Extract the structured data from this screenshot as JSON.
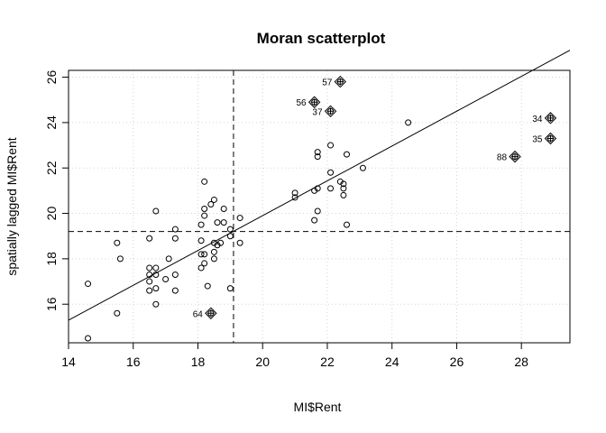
{
  "chart_data": {
    "type": "scatter",
    "title": "Moran scatterplot",
    "xlabel": "MI$Rent",
    "ylabel": "spatially lagged MI$Rent",
    "xlim": [
      14,
      29.5
    ],
    "ylim": [
      14.3,
      26.3
    ],
    "xticks": [
      14,
      16,
      18,
      20,
      22,
      24,
      26,
      28
    ],
    "yticks": [
      16,
      18,
      20,
      22,
      24,
      26
    ],
    "grid": true,
    "mean_x": 19.1,
    "mean_y": 19.2,
    "regression": {
      "intercept": 4.56,
      "slope": 0.767
    },
    "points": [
      {
        "x": 14.6,
        "y": 16.9
      },
      {
        "x": 14.6,
        "y": 14.5
      },
      {
        "x": 15.5,
        "y": 18.7
      },
      {
        "x": 15.6,
        "y": 18.0
      },
      {
        "x": 15.5,
        "y": 15.6
      },
      {
        "x": 16.5,
        "y": 18.9
      },
      {
        "x": 16.5,
        "y": 17.6
      },
      {
        "x": 16.5,
        "y": 17.3
      },
      {
        "x": 16.5,
        "y": 17.0
      },
      {
        "x": 16.5,
        "y": 16.6
      },
      {
        "x": 16.7,
        "y": 20.1
      },
      {
        "x": 16.7,
        "y": 17.6
      },
      {
        "x": 16.7,
        "y": 17.3
      },
      {
        "x": 16.7,
        "y": 16.7
      },
      {
        "x": 16.7,
        "y": 16.0
      },
      {
        "x": 17.0,
        "y": 17.1
      },
      {
        "x": 17.1,
        "y": 18.0
      },
      {
        "x": 17.3,
        "y": 19.3
      },
      {
        "x": 17.3,
        "y": 18.9
      },
      {
        "x": 17.3,
        "y": 17.3
      },
      {
        "x": 17.3,
        "y": 16.6
      },
      {
        "x": 18.1,
        "y": 19.5
      },
      {
        "x": 18.1,
        "y": 18.8
      },
      {
        "x": 18.1,
        "y": 18.2
      },
      {
        "x": 18.1,
        "y": 17.6
      },
      {
        "x": 18.2,
        "y": 21.4
      },
      {
        "x": 18.2,
        "y": 20.2
      },
      {
        "x": 18.2,
        "y": 19.9
      },
      {
        "x": 18.2,
        "y": 18.2
      },
      {
        "x": 18.2,
        "y": 17.8
      },
      {
        "x": 18.3,
        "y": 16.8
      },
      {
        "x": 18.4,
        "y": 20.4
      },
      {
        "x": 18.5,
        "y": 18.7
      },
      {
        "x": 18.5,
        "y": 18.3
      },
      {
        "x": 18.5,
        "y": 18.0
      },
      {
        "x": 18.5,
        "y": 20.6
      },
      {
        "x": 18.6,
        "y": 19.6
      },
      {
        "x": 18.6,
        "y": 18.6
      },
      {
        "x": 18.7,
        "y": 18.7
      },
      {
        "x": 18.8,
        "y": 20.2
      },
      {
        "x": 18.8,
        "y": 19.6
      },
      {
        "x": 19.0,
        "y": 19.3
      },
      {
        "x": 19.0,
        "y": 19.0
      },
      {
        "x": 19.0,
        "y": 16.7
      },
      {
        "x": 19.3,
        "y": 19.8
      },
      {
        "x": 19.3,
        "y": 18.7
      },
      {
        "x": 21.0,
        "y": 20.9
      },
      {
        "x": 21.0,
        "y": 20.7
      },
      {
        "x": 21.6,
        "y": 21.0
      },
      {
        "x": 21.6,
        "y": 19.7
      },
      {
        "x": 21.7,
        "y": 22.7
      },
      {
        "x": 21.7,
        "y": 22.5
      },
      {
        "x": 21.7,
        "y": 21.1
      },
      {
        "x": 21.7,
        "y": 20.1
      },
      {
        "x": 22.1,
        "y": 23.0
      },
      {
        "x": 22.1,
        "y": 21.8
      },
      {
        "x": 22.1,
        "y": 21.1
      },
      {
        "x": 22.4,
        "y": 21.4
      },
      {
        "x": 22.5,
        "y": 21.3
      },
      {
        "x": 22.5,
        "y": 21.1
      },
      {
        "x": 22.5,
        "y": 20.8
      },
      {
        "x": 22.6,
        "y": 22.6
      },
      {
        "x": 22.6,
        "y": 19.5
      },
      {
        "x": 23.1,
        "y": 22.0
      },
      {
        "x": 24.5,
        "y": 24.0
      }
    ],
    "influential_points": [
      {
        "label": "57",
        "x": 22.4,
        "y": 25.8
      },
      {
        "label": "56",
        "x": 21.6,
        "y": 24.9
      },
      {
        "label": "37",
        "x": 22.1,
        "y": 24.5
      },
      {
        "label": "34",
        "x": 28.9,
        "y": 24.2
      },
      {
        "label": "35",
        "x": 28.9,
        "y": 23.3
      },
      {
        "label": "88",
        "x": 27.8,
        "y": 22.5
      },
      {
        "label": "64",
        "x": 18.4,
        "y": 15.6
      }
    ]
  }
}
